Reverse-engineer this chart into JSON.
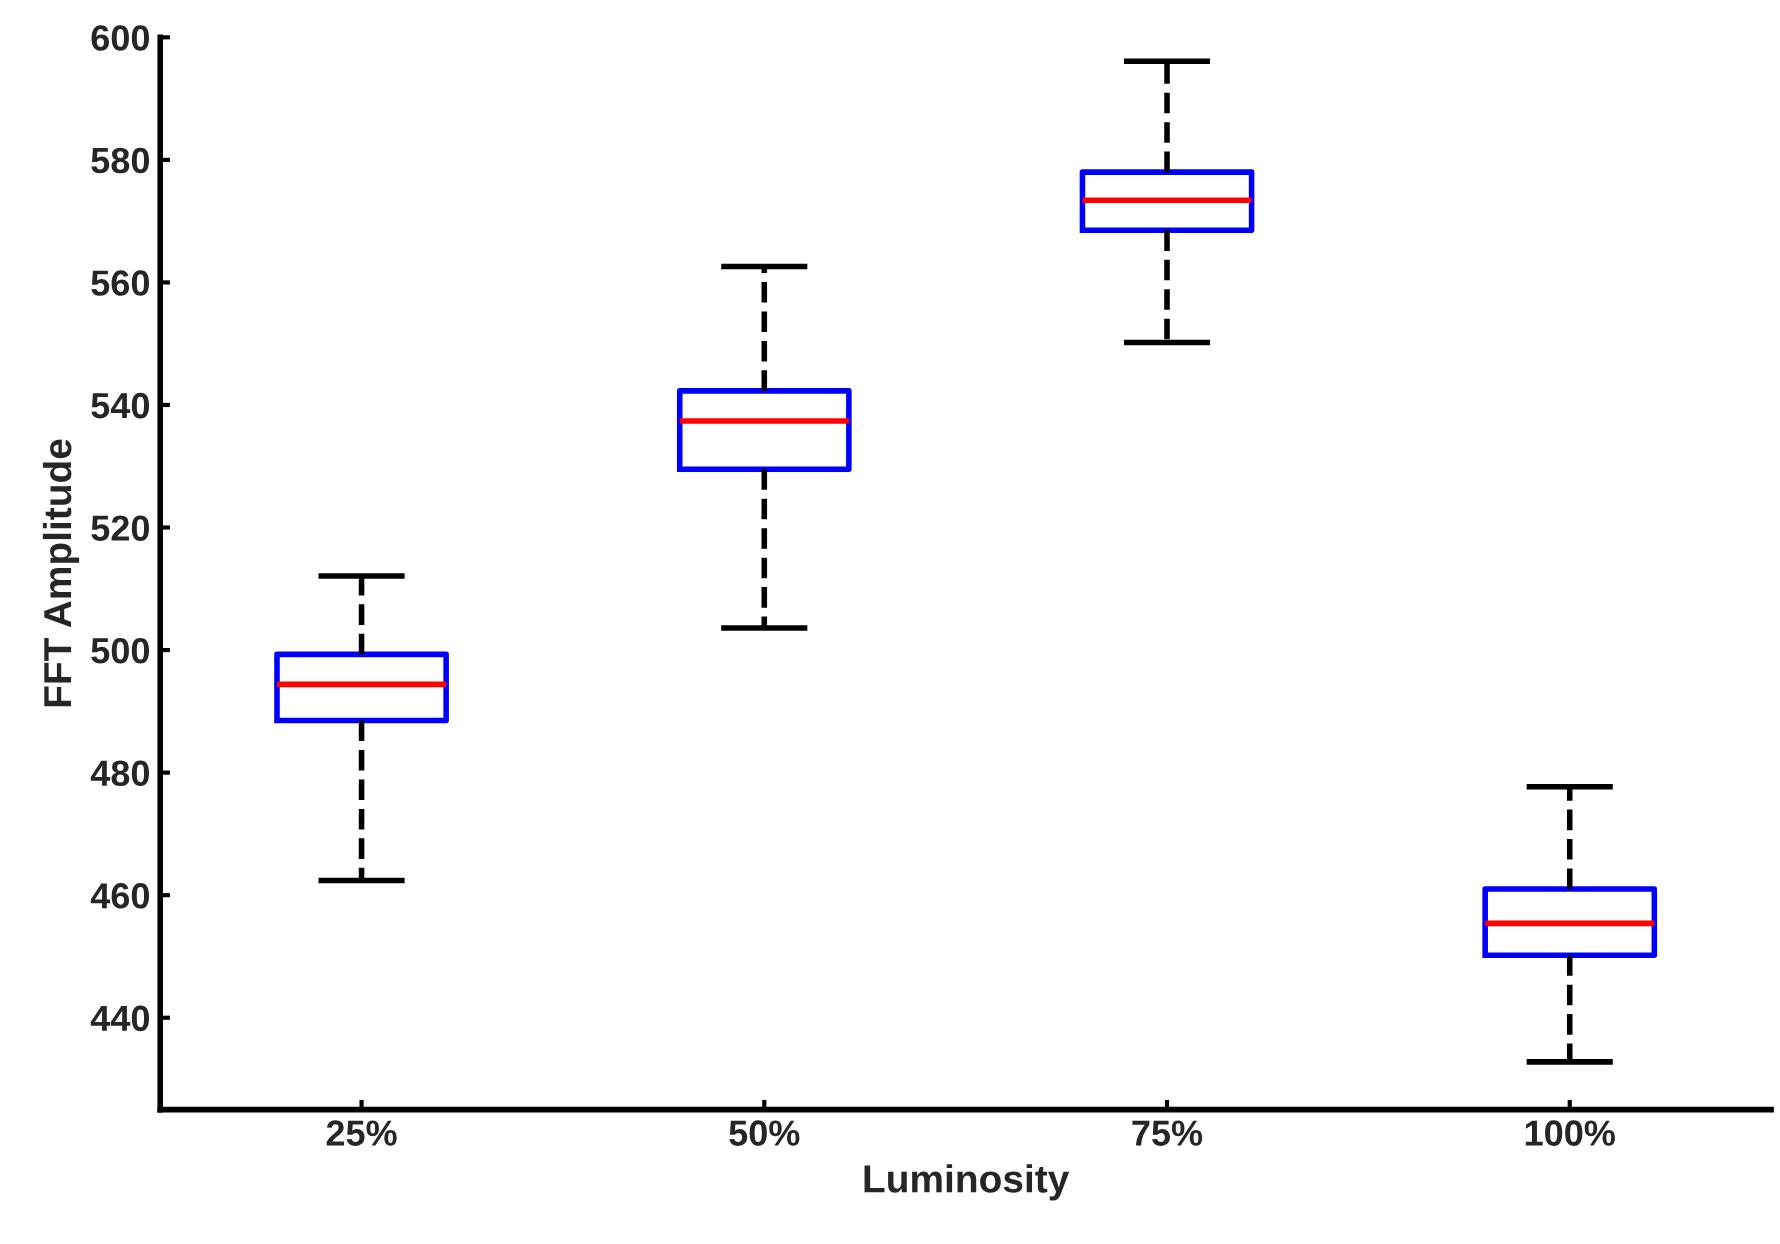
{
  "chart_data": {
    "type": "box",
    "xlabel": "Luminosity",
    "ylabel": "FFT Amplitude",
    "categories": [
      "25%",
      "50%",
      "75%",
      "100%"
    ],
    "boxes": [
      {
        "low": 462.4,
        "q1": 488.5,
        "median": 494.4,
        "q3": 499.3,
        "high": 512.1
      },
      {
        "low": 503.6,
        "q1": 529.5,
        "median": 537.4,
        "q3": 542.3,
        "high": 562.6
      },
      {
        "low": 550.2,
        "q1": 568.5,
        "median": 573.4,
        "q3": 578.0,
        "high": 596.1
      },
      {
        "low": 432.8,
        "q1": 450.2,
        "median": 455.4,
        "q3": 461.0,
        "high": 477.7
      }
    ],
    "color": "#0000ff",
    "ylim": [
      425,
      600
    ],
    "yticks": [
      440,
      460,
      480,
      500,
      520,
      540,
      560,
      580,
      600
    ],
    "grid": false,
    "legend": false
  }
}
